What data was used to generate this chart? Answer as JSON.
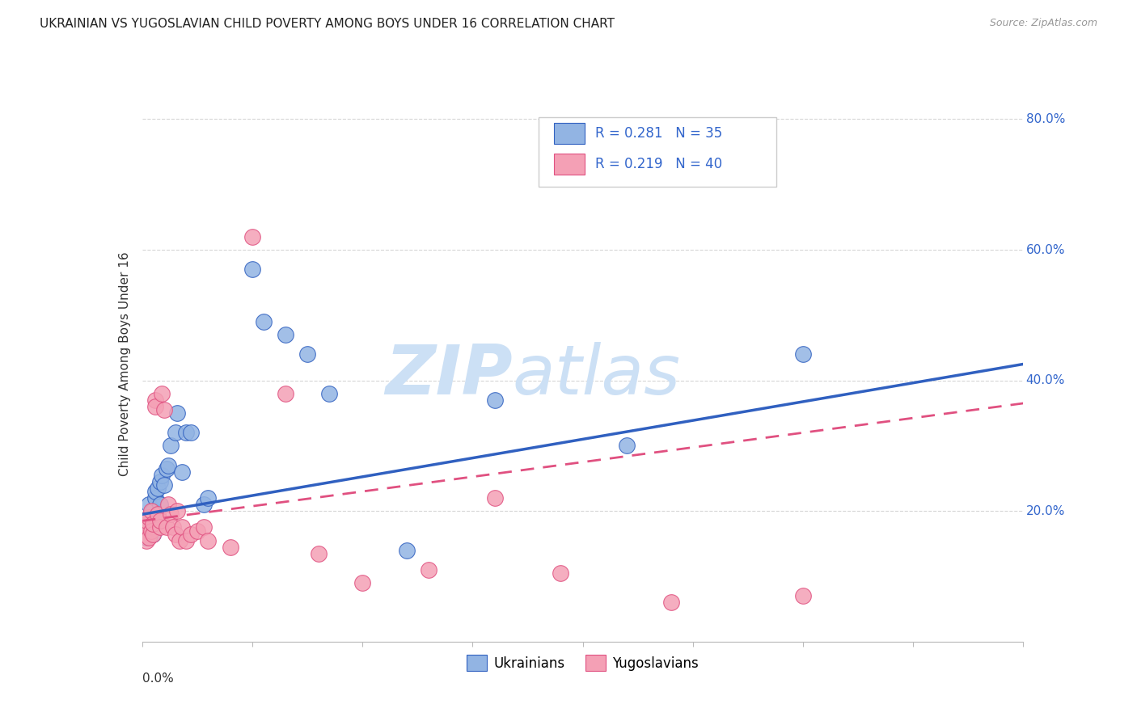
{
  "title": "UKRAINIAN VS YUGOSLAVIAN CHILD POVERTY AMONG BOYS UNDER 16 CORRELATION CHART",
  "source": "Source: ZipAtlas.com",
  "ylabel": "Child Poverty Among Boys Under 16",
  "legend_labels": [
    "Ukrainians",
    "Yugoslavians"
  ],
  "legend_r1": "R = 0.281",
  "legend_n1": "N = 35",
  "legend_r2": "R = 0.219",
  "legend_n2": "N = 40",
  "blue_color": "#92b4e3",
  "pink_color": "#f4a0b5",
  "trendline_blue": "#3060c0",
  "trendline_pink": "#e05080",
  "watermark_zip": "ZIP",
  "watermark_atlas": "atlas",
  "ukrainians_x": [
    0.001,
    0.002,
    0.002,
    0.003,
    0.003,
    0.004,
    0.004,
    0.005,
    0.005,
    0.006,
    0.006,
    0.007,
    0.008,
    0.008,
    0.009,
    0.01,
    0.011,
    0.012,
    0.013,
    0.015,
    0.016,
    0.018,
    0.02,
    0.022,
    0.028,
    0.03,
    0.05,
    0.055,
    0.065,
    0.075,
    0.085,
    0.12,
    0.16,
    0.22,
    0.3
  ],
  "ukrainians_y": [
    0.175,
    0.16,
    0.18,
    0.19,
    0.21,
    0.175,
    0.185,
    0.2,
    0.165,
    0.22,
    0.23,
    0.235,
    0.21,
    0.245,
    0.255,
    0.24,
    0.265,
    0.27,
    0.3,
    0.32,
    0.35,
    0.26,
    0.32,
    0.32,
    0.21,
    0.22,
    0.57,
    0.49,
    0.47,
    0.44,
    0.38,
    0.14,
    0.37,
    0.3,
    0.44
  ],
  "yugoslavians_x": [
    0.001,
    0.001,
    0.002,
    0.002,
    0.003,
    0.003,
    0.004,
    0.004,
    0.005,
    0.005,
    0.006,
    0.006,
    0.007,
    0.008,
    0.008,
    0.009,
    0.01,
    0.011,
    0.012,
    0.013,
    0.014,
    0.015,
    0.016,
    0.017,
    0.018,
    0.02,
    0.022,
    0.025,
    0.028,
    0.03,
    0.04,
    0.05,
    0.065,
    0.08,
    0.1,
    0.13,
    0.16,
    0.19,
    0.24,
    0.3
  ],
  "yugoslavians_y": [
    0.165,
    0.175,
    0.155,
    0.185,
    0.16,
    0.19,
    0.17,
    0.2,
    0.165,
    0.18,
    0.37,
    0.36,
    0.195,
    0.175,
    0.185,
    0.38,
    0.355,
    0.175,
    0.21,
    0.195,
    0.175,
    0.165,
    0.2,
    0.155,
    0.175,
    0.155,
    0.165,
    0.17,
    0.175,
    0.155,
    0.145,
    0.62,
    0.38,
    0.135,
    0.09,
    0.11,
    0.22,
    0.105,
    0.06,
    0.07
  ],
  "xlim": [
    0.0,
    0.4
  ],
  "ylim": [
    0.0,
    0.85
  ],
  "ytick_vals": [
    0.2,
    0.4,
    0.6,
    0.8
  ],
  "ytick_labels": [
    "20.0%",
    "40.0%",
    "60.0%",
    "80.0%"
  ]
}
